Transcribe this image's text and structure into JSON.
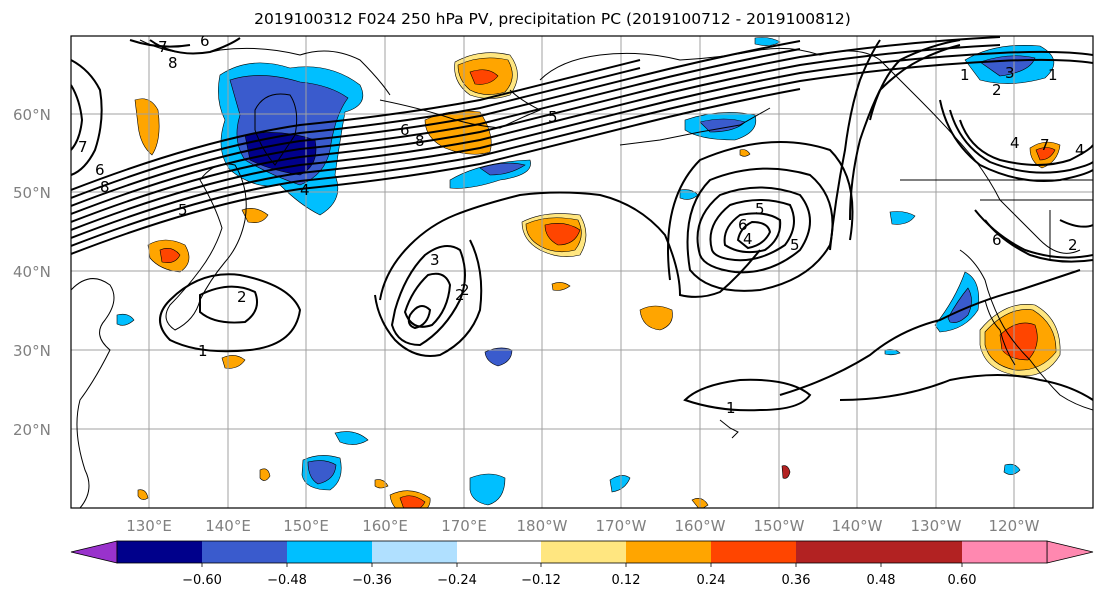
{
  "title": "2019100312 F024 250 hPa PV, precipitation PC (2019100712 - 2019100812)",
  "map": {
    "lat_labels": [
      "60°N",
      "50°N",
      "40°N",
      "30°N",
      "20°N"
    ],
    "lon_labels": [
      "130°E",
      "140°E",
      "150°E",
      "160°E",
      "170°E",
      "180°W",
      "170°W",
      "160°W",
      "150°W",
      "140°W",
      "130°W",
      "120°W"
    ],
    "grid": true,
    "contour_labels": [
      "6",
      "7",
      "8",
      "8",
      "7",
      "6",
      "5",
      "4",
      "5",
      "6",
      "8",
      "2",
      "5",
      "6",
      "5",
      "4",
      "3",
      "2",
      "1",
      "2",
      "1",
      "2",
      "3",
      "4",
      "1",
      "2",
      "4",
      "7",
      "6",
      "1"
    ]
  },
  "colorbar": {
    "ticks": [
      "−0.60",
      "−0.48",
      "−0.36",
      "−0.24",
      "−0.12",
      "0.12",
      "0.24",
      "0.36",
      "0.48",
      "0.60"
    ],
    "colors": [
      "#9932cc",
      "#00008b",
      "#3a5bcd",
      "#00bfff",
      "#b0e0ff",
      "#ffffff",
      "#ffe680",
      "#ffa500",
      "#ff4500",
      "#b22222",
      "#ff88b0"
    ]
  }
}
